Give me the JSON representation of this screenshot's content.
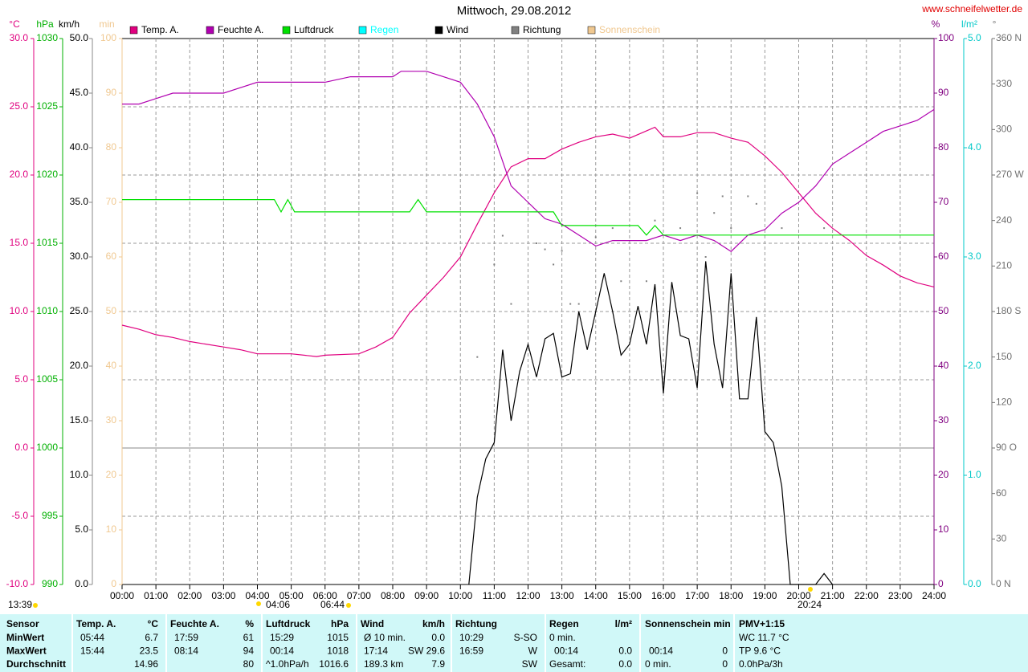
{
  "chart_data": {
    "type": "line",
    "title": "Mittwoch, 29.08.2012",
    "source": "www.schneifelwetter.de",
    "xlim": [
      0,
      24
    ],
    "xticks": [
      {
        "value": 0,
        "label": "00:00"
      },
      {
        "value": 1,
        "label": "01:00"
      },
      {
        "value": 2,
        "label": "02:00"
      },
      {
        "value": 3,
        "label": "03:00"
      },
      {
        "value": 4,
        "label": "04:00"
      },
      {
        "value": 5,
        "label": "05:00"
      },
      {
        "value": 6,
        "label": "06:00"
      },
      {
        "value": 7,
        "label": "07:00"
      },
      {
        "value": 8,
        "label": "08:00"
      },
      {
        "value": 9,
        "label": "09:00"
      },
      {
        "value": 10,
        "label": "10:00"
      },
      {
        "value": 11,
        "label": "11:00"
      },
      {
        "value": 12,
        "label": "12:00"
      },
      {
        "value": 13,
        "label": "13:00"
      },
      {
        "value": 14,
        "label": "14:00"
      },
      {
        "value": 15,
        "label": "15:00"
      },
      {
        "value": 16,
        "label": "16:00"
      },
      {
        "value": 17,
        "label": "17:00"
      },
      {
        "value": 18,
        "label": "18:00"
      },
      {
        "value": 19,
        "label": "19:00"
      },
      {
        "value": 20,
        "label": "20:00"
      },
      {
        "value": 21,
        "label": "21:00"
      },
      {
        "value": 22,
        "label": "22:00"
      },
      {
        "value": 23,
        "label": "23:00"
      },
      {
        "value": 24,
        "label": "24:00"
      }
    ],
    "grid": true,
    "axes": [
      {
        "unit": "°C",
        "color": "#e0007f",
        "lim": [
          -10,
          30
        ],
        "ticks": [
          {
            "value": -10,
            "label": "-10.0"
          },
          {
            "value": -5,
            "label": "-5.0"
          },
          {
            "value": 0,
            "label": "0.0"
          },
          {
            "value": 5,
            "label": "5.0"
          },
          {
            "value": 10,
            "label": "10.0"
          },
          {
            "value": 15,
            "label": "15.0"
          },
          {
            "value": 20,
            "label": "20.0"
          },
          {
            "value": 25,
            "label": "25.0"
          },
          {
            "value": 30,
            "label": "30.0"
          }
        ]
      },
      {
        "unit": "hPa",
        "color": "#00b000",
        "lim": [
          990,
          1030
        ],
        "ticks": [
          990,
          995,
          1000,
          1005,
          1010,
          1015,
          1020,
          1025,
          1030
        ]
      },
      {
        "unit": "km/h",
        "color": "#000000",
        "lim": [
          0,
          50
        ],
        "ticks": [
          {
            "value": 0,
            "label": "0.0"
          },
          {
            "value": 5,
            "label": "5.0"
          },
          {
            "value": 10,
            "label": "10.0"
          },
          {
            "value": 15,
            "label": "15.0"
          },
          {
            "value": 20,
            "label": "20.0"
          },
          {
            "value": 25,
            "label": "25.0"
          },
          {
            "value": 30,
            "label": "30.0"
          },
          {
            "value": 35,
            "label": "35.0"
          },
          {
            "value": 40,
            "label": "40.0"
          },
          {
            "value": 45,
            "label": "45.0"
          },
          {
            "value": 50,
            "label": "50.0"
          }
        ]
      },
      {
        "unit": "min",
        "color": "#f0c890",
        "lim": [
          0,
          100
        ],
        "ticks": [
          0,
          10,
          20,
          30,
          40,
          50,
          60,
          70,
          80,
          90,
          100
        ]
      },
      {
        "unit": "%",
        "color": "#800080",
        "lim": [
          0,
          100
        ],
        "ticks": [
          0,
          10,
          20,
          30,
          40,
          50,
          60,
          70,
          80,
          90,
          100
        ]
      },
      {
        "unit": "l/m²",
        "color": "#00c8c8",
        "lim": [
          0,
          5
        ],
        "ticks": [
          {
            "value": 0,
            "label": "0.0"
          },
          {
            "value": 1,
            "label": "1.0"
          },
          {
            "value": 2,
            "label": "2.0"
          },
          {
            "value": 3,
            "label": "3.0"
          },
          {
            "value": 4,
            "label": "4.0"
          },
          {
            "value": 5,
            "label": "5.0"
          }
        ]
      },
      {
        "unit": "°",
        "color": "#707070",
        "lim": [
          0,
          360
        ],
        "ticks": [
          {
            "value": 0,
            "label": "0 N"
          },
          30,
          60,
          {
            "value": 90,
            "label": "90 O"
          },
          120,
          150,
          {
            "value": 180,
            "label": "180 S"
          },
          210,
          240,
          {
            "value": 270,
            "label": "270 W"
          },
          300,
          330,
          {
            "value": 360,
            "label": "360 N"
          }
        ]
      }
    ],
    "series": [
      {
        "name": "Temp. A.",
        "color": "#e0007f",
        "axis": "°C",
        "x": [
          0,
          0.5,
          1,
          1.5,
          2,
          3,
          3.5,
          4,
          5,
          5.75,
          6,
          7,
          7.5,
          8,
          8.5,
          9,
          9.5,
          10,
          10.5,
          11,
          11.5,
          12,
          12.5,
          13,
          13.5,
          14,
          14.5,
          15,
          15.75,
          16,
          16.5,
          17,
          17.5,
          18,
          18.5,
          19,
          19.5,
          20,
          20.5,
          21,
          21.5,
          22,
          22.5,
          23,
          23.5,
          24
        ],
        "values": [
          9.0,
          8.7,
          8.3,
          8.1,
          7.8,
          7.4,
          7.2,
          6.9,
          6.9,
          6.7,
          6.8,
          6.9,
          7.4,
          8.1,
          9.9,
          11.2,
          12.5,
          14.0,
          16.4,
          18.7,
          20.6,
          21.2,
          21.2,
          21.9,
          22.4,
          22.8,
          23.0,
          22.7,
          23.5,
          22.8,
          22.8,
          23.1,
          23.1,
          22.7,
          22.4,
          21.4,
          20.2,
          18.7,
          17.2,
          16.1,
          15.2,
          14.1,
          13.4,
          12.6,
          12.1,
          11.8
        ]
      },
      {
        "name": "Feuchte A.",
        "color": "#b000b0",
        "axis": "%",
        "x": [
          0,
          0.5,
          1,
          1.5,
          3,
          3.5,
          4,
          6,
          6.75,
          8,
          8.25,
          9,
          9.5,
          10,
          10.5,
          11,
          11.5,
          12,
          12.5,
          13,
          13.5,
          14,
          14.5,
          15,
          15.5,
          16,
          16.5,
          17,
          17.5,
          18,
          18.5,
          19,
          19.5,
          20,
          20.5,
          21,
          21.5,
          22,
          22.5,
          23,
          23.5,
          24
        ],
        "values": [
          88,
          88,
          89,
          90,
          90,
          91,
          92,
          92,
          93,
          93,
          94,
          94,
          93,
          92,
          88,
          82,
          73,
          70,
          67,
          66,
          64,
          62,
          63,
          63,
          63,
          64,
          63,
          64,
          63,
          61,
          64,
          65,
          68,
          70,
          73,
          77,
          79,
          81,
          83,
          84,
          85,
          87
        ]
      },
      {
        "name": "Luftdruck",
        "color": "#00e000",
        "axis": "hPa",
        "x": [
          0,
          4.5,
          4.7,
          4.9,
          5.1,
          8.5,
          8.75,
          9,
          12.75,
          13,
          15.25,
          15.5,
          15.75,
          16,
          24
        ],
        "values": [
          1018.2,
          1018.2,
          1017.3,
          1018.2,
          1017.3,
          1017.3,
          1018.2,
          1017.3,
          1017.3,
          1016.3,
          1016.3,
          1015.6,
          1016.3,
          1015.6,
          1015.6
        ]
      },
      {
        "name": "Regen",
        "color": "#00ffff",
        "axis": "l/m²"
      },
      {
        "name": "Wind",
        "color": "#000000",
        "axis": "km/h",
        "x": [
          10.25,
          10.5,
          10.75,
          11,
          11.25,
          11.5,
          11.75,
          12,
          12.25,
          12.5,
          12.75,
          13,
          13.25,
          13.5,
          13.75,
          14,
          14.25,
          14.5,
          14.75,
          15,
          15.25,
          15.5,
          15.75,
          16,
          16.25,
          16.5,
          16.75,
          17,
          17.25,
          17.5,
          17.75,
          18,
          18.25,
          18.5,
          18.75,
          19,
          19.25,
          19.5,
          19.75,
          20,
          20.5,
          20.75,
          21
        ],
        "values": [
          0,
          8,
          11.5,
          13,
          21.5,
          15,
          19.5,
          22,
          19,
          22.5,
          23,
          19,
          19.3,
          25,
          21.5,
          25,
          28.5,
          25,
          21,
          22,
          25.5,
          22,
          27.5,
          17.5,
          27.7,
          22.8,
          22.5,
          18,
          29.6,
          22,
          18,
          28.5,
          17,
          17,
          24.5,
          14,
          13,
          9,
          0,
          0,
          0,
          1,
          0
        ]
      },
      {
        "name": "Richtung",
        "color": "#808080",
        "axis": "°",
        "style": "points",
        "x": [
          10.5,
          11,
          11.25,
          11.5,
          12.25,
          12.5,
          12.75,
          13,
          13.25,
          13.5,
          14,
          14.5,
          14.75,
          15.5,
          15.75,
          16.5,
          17,
          17.25,
          17.5,
          17.75,
          18,
          18.5,
          18.75,
          19.5,
          20.75
        ],
        "values": [
          150,
          211,
          230,
          185,
          225,
          221,
          211,
          220,
          185,
          185,
          229,
          235,
          200,
          200,
          240,
          235,
          258,
          216,
          245,
          256,
          235,
          256,
          251,
          235,
          235
        ]
      },
      {
        "name": "Sonnenschein",
        "color": "#f0c890",
        "axis": "min"
      }
    ],
    "annotations": [
      "13:39",
      "04:06",
      "06:44",
      "20:24"
    ],
    "table": {
      "header": [
        "Sensor",
        "Temp. A.",
        "°C",
        "Feuchte A.",
        "%",
        "Luftdruck",
        "hPa",
        "Wind",
        "km/h",
        "Richtung",
        "Regen",
        "l/m²",
        "Sonnenschein min",
        "PMV+1:15"
      ],
      "rows": [
        [
          "MinWert",
          "05:44",
          "6.7",
          "17:59",
          "61",
          "15:29",
          "1015",
          "Ø 10 min.",
          "0.0",
          "10:29",
          "S-SO",
          "0 min.",
          "WC 11.7 °C"
        ],
        [
          "MaxWert",
          "15:44",
          "23.5",
          "08:14",
          "94",
          "00:14",
          "1018",
          "17:14",
          "SW 29.6",
          "16:59",
          "W",
          "00:14",
          "0.0",
          "00:14",
          "0",
          "TP 9.6 °C"
        ],
        [
          "Durchschnitt",
          "14.96",
          "80",
          "^1.0hPa/h",
          "1016.6",
          "189.3 km",
          "7.9",
          "SW",
          "Gesamt:",
          "0.0",
          "0 min.",
          "0",
          "0.0hPa/3h"
        ]
      ]
    }
  }
}
